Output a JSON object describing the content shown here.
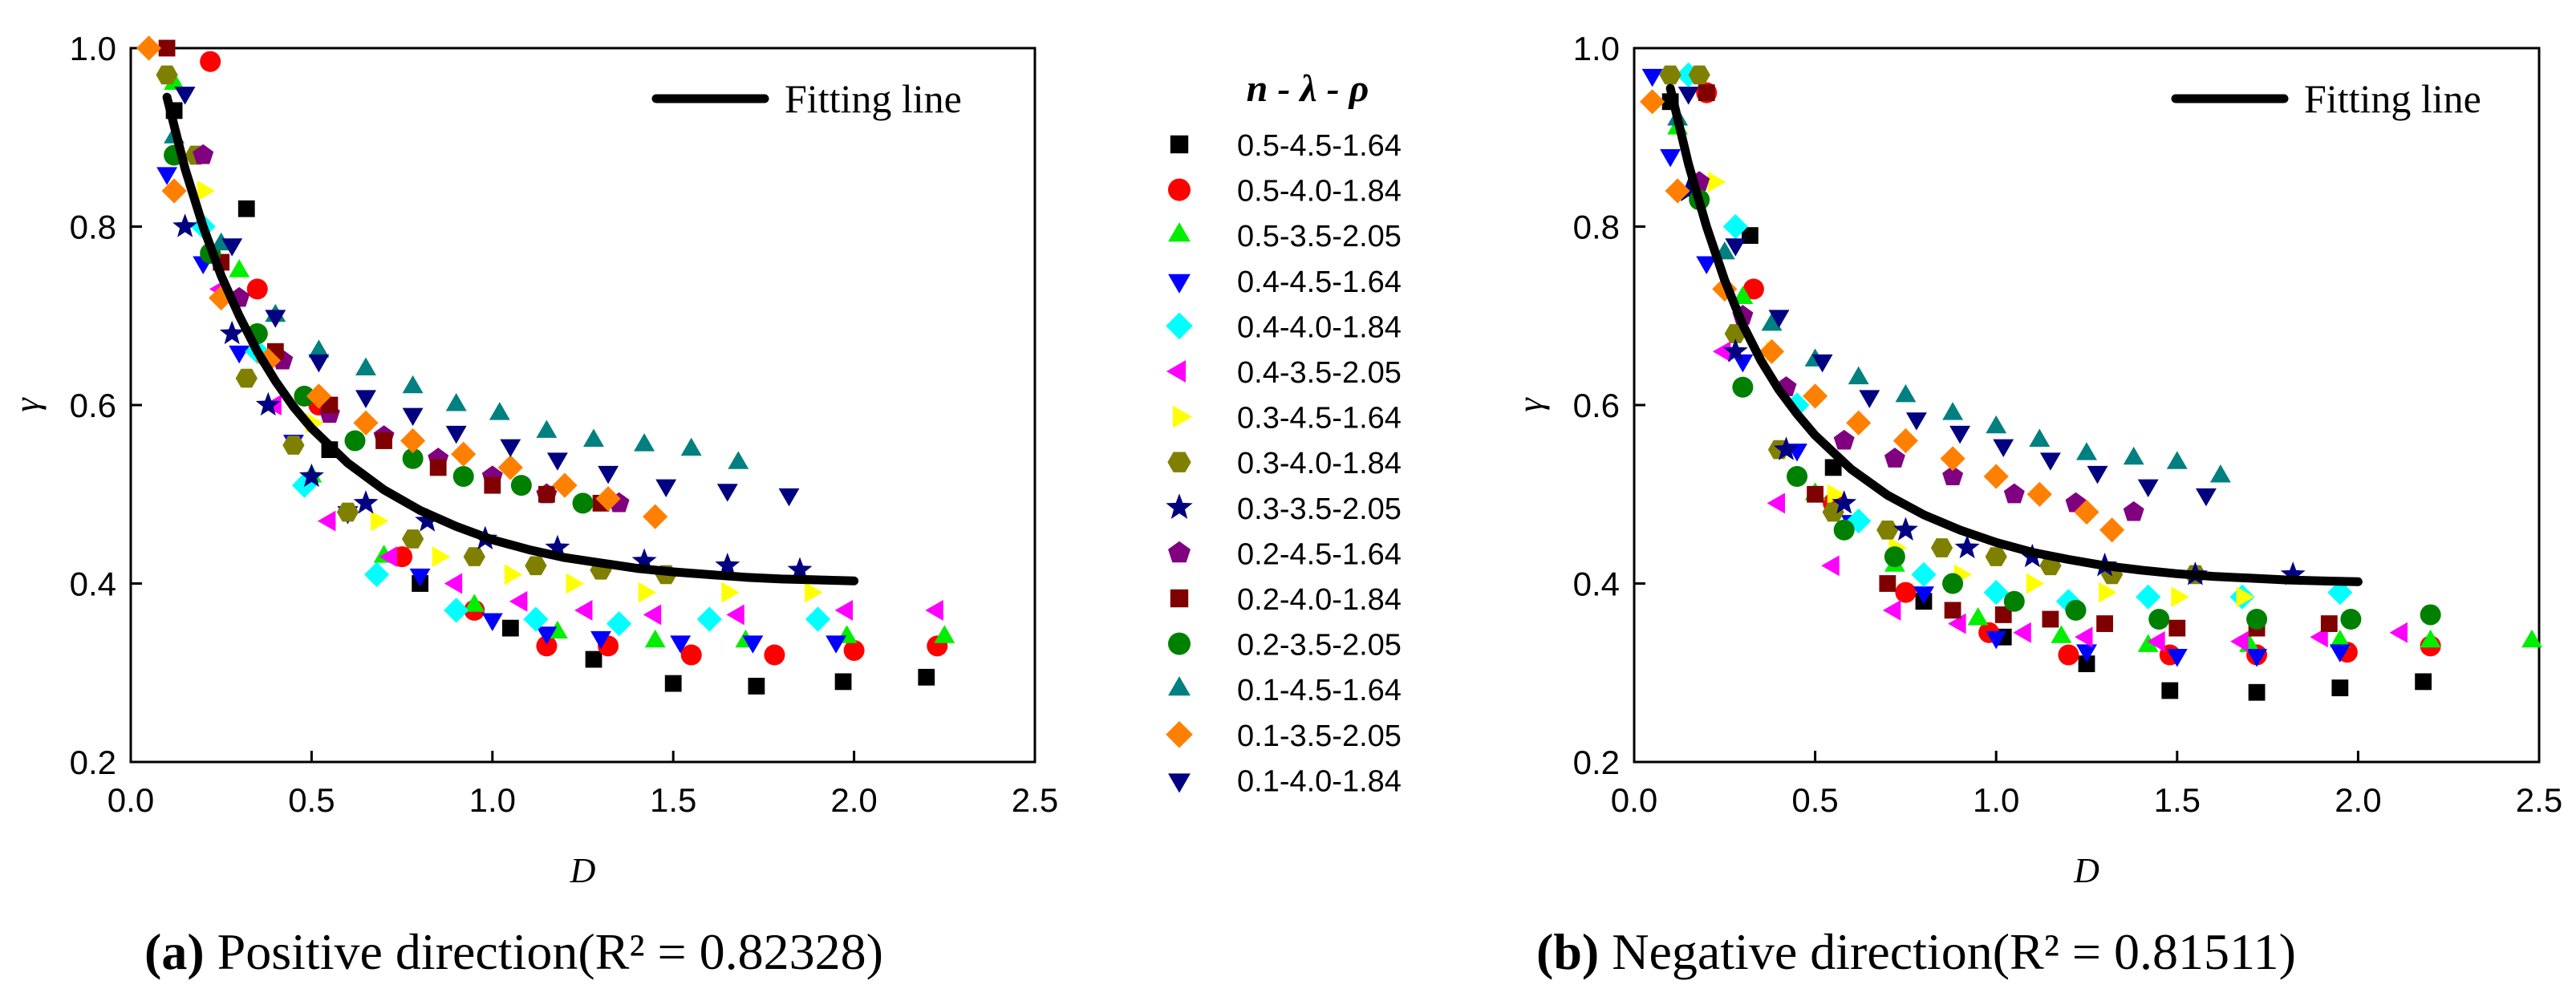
{
  "chart_data": [
    {
      "type": "scatter",
      "xlabel": "D",
      "ylabel": "γ",
      "xlim": [
        0,
        2.5
      ],
      "ylim": [
        0.2,
        1.0
      ],
      "xticks": [
        "0.0",
        "0.5",
        "1.0",
        "1.5",
        "2.0",
        "2.5"
      ],
      "yticks": [
        "0.2",
        "0.4",
        "0.6",
        "0.8",
        "1.0"
      ],
      "fit_label": "Fitting line",
      "fit_line": {
        "x": [
          0.1,
          0.15,
          0.2,
          0.25,
          0.3,
          0.35,
          0.4,
          0.45,
          0.5,
          0.6,
          0.7,
          0.8,
          0.9,
          1.0,
          1.1,
          1.2,
          1.3,
          1.4,
          1.5,
          1.6,
          1.7,
          1.8,
          1.9,
          2.0
        ],
        "y": [
          0.945,
          0.865,
          0.8,
          0.745,
          0.7,
          0.66,
          0.627,
          0.598,
          0.574,
          0.535,
          0.505,
          0.482,
          0.464,
          0.449,
          0.438,
          0.429,
          0.423,
          0.417,
          0.413,
          0.41,
          0.407,
          0.405,
          0.404,
          0.403
        ]
      },
      "caption_tag": "(a)",
      "caption_text": " Positive direction(R² = 0.82328)",
      "series": [
        {
          "name": "0.5-4.5-1.64",
          "x": [
            0.12,
            0.32,
            0.55,
            0.8,
            1.05,
            1.28,
            1.5,
            1.73,
            1.97,
            2.2
          ],
          "y": [
            0.93,
            0.82,
            0.55,
            0.4,
            0.35,
            0.315,
            0.288,
            0.285,
            0.29,
            0.295
          ]
        },
        {
          "name": "0.5-4.0-1.84",
          "x": [
            0.22,
            0.35,
            0.52,
            0.75,
            0.95,
            1.15,
            1.32,
            1.55,
            1.78,
            2.0,
            2.23
          ],
          "y": [
            0.985,
            0.73,
            0.6,
            0.43,
            0.37,
            0.33,
            0.33,
            0.32,
            0.32,
            0.325,
            0.33
          ]
        },
        {
          "name": "0.5-3.5-2.05",
          "x": [
            0.12,
            0.3,
            0.5,
            0.7,
            0.95,
            1.18,
            1.45,
            1.7,
            1.98,
            2.25
          ],
          "y": [
            0.96,
            0.75,
            0.52,
            0.43,
            0.375,
            0.345,
            0.335,
            0.335,
            0.34,
            0.34
          ]
        },
        {
          "name": "0.4-4.5-1.64",
          "x": [
            0.1,
            0.2,
            0.3,
            0.45,
            0.6,
            0.8,
            1.0,
            1.15,
            1.3,
            1.52,
            1.72,
            1.95
          ],
          "y": [
            0.86,
            0.76,
            0.66,
            0.56,
            0.48,
            0.41,
            0.36,
            0.345,
            0.34,
            0.335,
            0.335,
            0.335
          ]
        },
        {
          "name": "0.4-4.0-1.84",
          "x": [
            0.2,
            0.35,
            0.48,
            0.68,
            0.9,
            1.12,
            1.35,
            1.6,
            1.9
          ],
          "y": [
            0.8,
            0.66,
            0.51,
            0.41,
            0.37,
            0.36,
            0.355,
            0.36,
            0.36
          ]
        },
        {
          "name": "0.4-3.5-2.05",
          "x": [
            0.25,
            0.4,
            0.55,
            0.72,
            0.9,
            1.08,
            1.26,
            1.45,
            1.68,
            1.98,
            2.23
          ],
          "y": [
            0.73,
            0.6,
            0.47,
            0.43,
            0.4,
            0.38,
            0.37,
            0.365,
            0.365,
            0.37,
            0.37
          ]
        },
        {
          "name": "0.3-4.5-1.64",
          "x": [
            0.2,
            0.35,
            0.5,
            0.68,
            0.85,
            1.05,
            1.22,
            1.42,
            1.65,
            1.88
          ],
          "y": [
            0.84,
            0.68,
            0.58,
            0.47,
            0.43,
            0.41,
            0.4,
            0.39,
            0.39,
            0.39
          ]
        },
        {
          "name": "0.3-4.0-1.84",
          "x": [
            0.1,
            0.18,
            0.32,
            0.45,
            0.6,
            0.78,
            0.95,
            1.12,
            1.3,
            1.48
          ],
          "y": [
            0.97,
            0.88,
            0.63,
            0.555,
            0.48,
            0.45,
            0.43,
            0.42,
            0.415,
            0.41
          ]
        },
        {
          "name": "0.3-3.5-2.05",
          "x": [
            0.15,
            0.28,
            0.38,
            0.5,
            0.65,
            0.82,
            0.98,
            1.18,
            1.42,
            1.65,
            1.85
          ],
          "y": [
            0.8,
            0.68,
            0.6,
            0.52,
            0.49,
            0.47,
            0.45,
            0.44,
            0.425,
            0.42,
            0.415
          ]
        },
        {
          "name": "0.2-4.5-1.64",
          "x": [
            0.2,
            0.3,
            0.42,
            0.55,
            0.7,
            0.85,
            1.0,
            1.15,
            1.35
          ],
          "y": [
            0.88,
            0.72,
            0.65,
            0.59,
            0.565,
            0.54,
            0.52,
            0.5,
            0.49
          ]
        },
        {
          "name": "0.2-4.0-1.84",
          "x": [
            0.1,
            0.25,
            0.4,
            0.55,
            0.7,
            0.85,
            1.0,
            1.15,
            1.3
          ],
          "y": [
            1.0,
            0.76,
            0.66,
            0.6,
            0.56,
            0.53,
            0.51,
            0.5,
            0.49
          ]
        },
        {
          "name": "0.2-3.5-2.05",
          "x": [
            0.12,
            0.22,
            0.35,
            0.48,
            0.62,
            0.78,
            0.92,
            1.08,
            1.25
          ],
          "y": [
            0.88,
            0.77,
            0.68,
            0.61,
            0.56,
            0.54,
            0.52,
            0.51,
            0.49
          ]
        },
        {
          "name": "0.1-4.5-1.64",
          "x": [
            0.12,
            0.25,
            0.4,
            0.52,
            0.65,
            0.78,
            0.9,
            1.02,
            1.15,
            1.28,
            1.42,
            1.55,
            1.68
          ],
          "y": [
            0.9,
            0.78,
            0.7,
            0.66,
            0.64,
            0.62,
            0.6,
            0.59,
            0.57,
            0.56,
            0.555,
            0.55,
            0.535
          ]
        },
        {
          "name": "0.1-3.5-2.05",
          "x": [
            0.05,
            0.12,
            0.25,
            0.38,
            0.52,
            0.65,
            0.78,
            0.92,
            1.05,
            1.2,
            1.32,
            1.45
          ],
          "y": [
            1.0,
            0.84,
            0.72,
            0.65,
            0.61,
            0.58,
            0.56,
            0.545,
            0.53,
            0.51,
            0.495,
            0.475
          ]
        },
        {
          "name": "0.1-4.0-1.84",
          "x": [
            0.15,
            0.28,
            0.4,
            0.52,
            0.65,
            0.78,
            0.9,
            1.05,
            1.18,
            1.32,
            1.48,
            1.65,
            1.82
          ],
          "y": [
            0.95,
            0.78,
            0.7,
            0.65,
            0.61,
            0.59,
            0.57,
            0.555,
            0.54,
            0.525,
            0.51,
            0.505,
            0.5
          ]
        }
      ]
    },
    {
      "type": "scatter",
      "xlabel": "D",
      "ylabel": "γ",
      "xlim": [
        0,
        2.5
      ],
      "ylim": [
        0.2,
        1.0
      ],
      "xticks": [
        "0.0",
        "0.5",
        "1.0",
        "1.5",
        "2.0",
        "2.5"
      ],
      "yticks": [
        "0.2",
        "0.4",
        "0.6",
        "0.8",
        "1.0"
      ],
      "fit_label": "Fitting line",
      "fit_line": {
        "x": [
          0.1,
          0.15,
          0.2,
          0.25,
          0.3,
          0.35,
          0.4,
          0.45,
          0.5,
          0.6,
          0.7,
          0.8,
          0.9,
          1.0,
          1.1,
          1.2,
          1.3,
          1.4,
          1.5,
          1.6,
          1.7,
          1.8,
          1.9,
          2.0
        ],
        "y": [
          0.955,
          0.87,
          0.8,
          0.74,
          0.69,
          0.65,
          0.617,
          0.59,
          0.566,
          0.528,
          0.499,
          0.477,
          0.46,
          0.446,
          0.435,
          0.427,
          0.42,
          0.415,
          0.411,
          0.408,
          0.406,
          0.404,
          0.403,
          0.402
        ]
      },
      "caption_tag": "(b)",
      "caption_text": " Negative direction(R² = 0.81511)",
      "series": [
        {
          "name": "0.5-4.5-1.64",
          "x": [
            0.1,
            0.32,
            0.55,
            0.8,
            1.02,
            1.25,
            1.48,
            1.72,
            1.95,
            2.18
          ],
          "y": [
            0.94,
            0.79,
            0.53,
            0.38,
            0.34,
            0.31,
            0.28,
            0.278,
            0.283,
            0.29
          ]
        },
        {
          "name": "0.5-4.0-1.84",
          "x": [
            0.2,
            0.33,
            0.55,
            0.75,
            0.98,
            1.2,
            1.48,
            1.72,
            1.97,
            2.2
          ],
          "y": [
            0.95,
            0.73,
            0.49,
            0.39,
            0.345,
            0.32,
            0.32,
            0.32,
            0.323,
            0.33
          ]
        },
        {
          "name": "0.5-3.5-2.05",
          "x": [
            0.12,
            0.3,
            0.5,
            0.72,
            0.95,
            1.18,
            1.42,
            1.7,
            1.95,
            2.2,
            2.48
          ],
          "y": [
            0.91,
            0.72,
            0.5,
            0.42,
            0.36,
            0.34,
            0.33,
            0.33,
            0.335,
            0.335,
            0.335
          ]
        },
        {
          "name": "0.4-4.5-1.64",
          "x": [
            0.05,
            0.1,
            0.2,
            0.3,
            0.45,
            0.6,
            0.8,
            1.0,
            1.25,
            1.5,
            1.72,
            1.95
          ],
          "y": [
            0.97,
            0.88,
            0.76,
            0.65,
            0.55,
            0.47,
            0.39,
            0.34,
            0.325,
            0.32,
            0.32,
            0.325
          ]
        },
        {
          "name": "0.4-4.0-1.84",
          "x": [
            0.15,
            0.28,
            0.45,
            0.62,
            0.8,
            1.0,
            1.2,
            1.42,
            1.68,
            1.95
          ],
          "y": [
            0.97,
            0.8,
            0.6,
            0.47,
            0.41,
            0.39,
            0.38,
            0.385,
            0.385,
            0.39
          ]
        },
        {
          "name": "0.4-3.5-2.05",
          "x": [
            0.25,
            0.4,
            0.55,
            0.72,
            0.9,
            1.08,
            1.25,
            1.45,
            1.68,
            1.9,
            2.12
          ],
          "y": [
            0.66,
            0.49,
            0.42,
            0.37,
            0.355,
            0.345,
            0.34,
            0.335,
            0.335,
            0.34,
            0.345
          ]
        },
        {
          "name": "0.3-4.5-1.64",
          "x": [
            0.22,
            0.38,
            0.55,
            0.72,
            0.9,
            1.1,
            1.3,
            1.5,
            1.68
          ],
          "y": [
            0.85,
            0.66,
            0.5,
            0.44,
            0.41,
            0.4,
            0.39,
            0.385,
            0.385
          ]
        },
        {
          "name": "0.3-4.0-1.84",
          "x": [
            0.1,
            0.18,
            0.28,
            0.4,
            0.55,
            0.7,
            0.85,
            1.0,
            1.15,
            1.32,
            1.55
          ],
          "y": [
            0.97,
            0.97,
            0.68,
            0.55,
            0.48,
            0.46,
            0.44,
            0.43,
            0.42,
            0.41,
            0.41
          ]
        },
        {
          "name": "0.3-3.5-2.05",
          "x": [
            0.15,
            0.28,
            0.42,
            0.58,
            0.75,
            0.92,
            1.1,
            1.3,
            1.55,
            1.82
          ],
          "y": [
            0.84,
            0.66,
            0.55,
            0.49,
            0.46,
            0.44,
            0.43,
            0.42,
            0.41,
            0.41
          ]
        },
        {
          "name": "0.2-4.5-1.64",
          "x": [
            0.18,
            0.3,
            0.42,
            0.58,
            0.72,
            0.88,
            1.05,
            1.22,
            1.38
          ],
          "y": [
            0.85,
            0.7,
            0.62,
            0.56,
            0.54,
            0.52,
            0.5,
            0.49,
            0.48
          ]
        },
        {
          "name": "0.2-4.0-1.84",
          "x": [
            0.2,
            0.5,
            0.7,
            0.88,
            1.02,
            1.15,
            1.3,
            1.5,
            1.72,
            1.92
          ],
          "y": [
            0.95,
            0.5,
            0.4,
            0.37,
            0.365,
            0.36,
            0.355,
            0.35,
            0.35,
            0.355
          ]
        },
        {
          "name": "0.2-3.5-2.05",
          "x": [
            0.18,
            0.3,
            0.45,
            0.58,
            0.72,
            0.88,
            1.05,
            1.22,
            1.45,
            1.72,
            1.98,
            2.2
          ],
          "y": [
            0.83,
            0.62,
            0.52,
            0.46,
            0.43,
            0.4,
            0.38,
            0.37,
            0.36,
            0.36,
            0.36,
            0.365
          ]
        },
        {
          "name": "0.1-4.5-1.64",
          "x": [
            0.12,
            0.25,
            0.38,
            0.5,
            0.62,
            0.75,
            0.88,
            1.0,
            1.12,
            1.25,
            1.38,
            1.5,
            1.62
          ],
          "y": [
            0.92,
            0.77,
            0.69,
            0.65,
            0.63,
            0.61,
            0.59,
            0.575,
            0.56,
            0.545,
            0.54,
            0.535,
            0.52
          ]
        },
        {
          "name": "0.1-3.5-2.05",
          "x": [
            0.05,
            0.12,
            0.25,
            0.38,
            0.5,
            0.62,
            0.75,
            0.88,
            1.0,
            1.12,
            1.25,
            1.32
          ],
          "y": [
            0.94,
            0.84,
            0.73,
            0.66,
            0.61,
            0.58,
            0.56,
            0.54,
            0.52,
            0.5,
            0.48,
            0.46
          ]
        },
        {
          "name": "0.1-4.0-1.84",
          "x": [
            0.15,
            0.28,
            0.4,
            0.52,
            0.65,
            0.78,
            0.9,
            1.02,
            1.15,
            1.28,
            1.42,
            1.58
          ],
          "y": [
            0.95,
            0.78,
            0.7,
            0.65,
            0.61,
            0.585,
            0.57,
            0.555,
            0.54,
            0.525,
            0.51,
            0.5
          ]
        }
      ]
    }
  ],
  "legend": {
    "title_parts": [
      "n",
      " - ",
      "λ",
      " - ",
      "ρ"
    ],
    "items": [
      "0.5-4.5-1.64",
      "0.5-4.0-1.84",
      "0.5-3.5-2.05",
      "0.4-4.5-1.64",
      "0.4-4.0-1.84",
      "0.4-3.5-2.05",
      "0.3-4.5-1.64",
      "0.3-4.0-1.84",
      "0.3-3.5-2.05",
      "0.2-4.5-1.64",
      "0.2-4.0-1.84",
      "0.2-3.5-2.05",
      "0.1-4.5-1.64",
      "0.1-3.5-2.05",
      "0.1-4.0-1.84"
    ]
  },
  "styles": [
    {
      "shape": "square",
      "color": "#000000"
    },
    {
      "shape": "circle",
      "color": "#ff0000"
    },
    {
      "shape": "triangle-up",
      "color": "#00ee00"
    },
    {
      "shape": "triangle-down",
      "color": "#0000ff"
    },
    {
      "shape": "diamond",
      "color": "#00ffff"
    },
    {
      "shape": "triangle-left",
      "color": "#ff00ff"
    },
    {
      "shape": "triangle-right",
      "color": "#ffff00"
    },
    {
      "shape": "hexagon",
      "color": "#808000"
    },
    {
      "shape": "star",
      "color": "#000080"
    },
    {
      "shape": "pentagon",
      "color": "#800080"
    },
    {
      "shape": "square",
      "color": "#800000"
    },
    {
      "shape": "circle",
      "color": "#008000"
    },
    {
      "shape": "triangle-up",
      "color": "#008080"
    },
    {
      "shape": "diamond",
      "color": "#ff8000"
    },
    {
      "shape": "triangle-down",
      "color": "#000080"
    }
  ]
}
